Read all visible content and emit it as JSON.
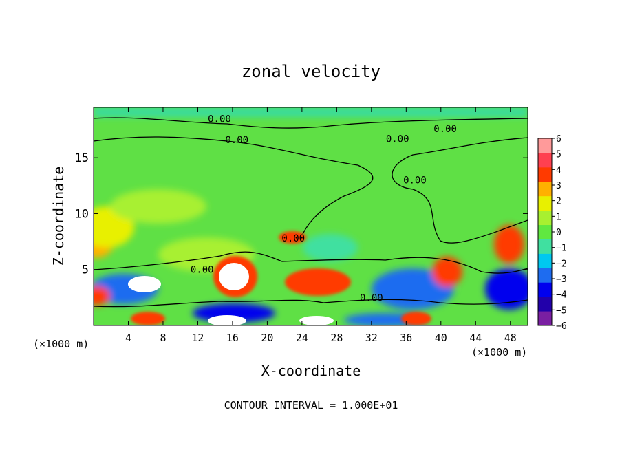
{
  "chart_data": {
    "type": "heatmap",
    "title": "zonal velocity",
    "xlabel": "X-coordinate",
    "ylabel": "Z-coordinate",
    "x_units_left": "(×1000 m)",
    "x_units_right": "(×1000 m)",
    "footer": "CONTOUR INTERVAL = 1.000E+01",
    "xlim": [
      0,
      50
    ],
    "ylim": [
      0,
      19.5
    ],
    "x_ticks": [
      4,
      8,
      12,
      16,
      20,
      24,
      28,
      32,
      36,
      40,
      44,
      48
    ],
    "y_ticks": [
      5,
      10,
      15
    ],
    "colorbar": {
      "range": [
        -6,
        6
      ],
      "ticks": [
        6,
        5,
        4,
        3,
        2,
        1,
        0,
        -1,
        -2,
        -3,
        -4,
        -5,
        -6
      ],
      "labels": [
        "6",
        "5",
        "4",
        "3",
        "2",
        "1",
        "0",
        "−1",
        "−2",
        "−3",
        "−4",
        "−5",
        "−6"
      ],
      "colors": [
        "#7a1fa2",
        "#2200aa",
        "#0000ee",
        "#1e6cf0",
        "#00c8f0",
        "#40e0a0",
        "#60e840",
        "#a8f030",
        "#e8f000",
        "#ffb000",
        "#ff3a00",
        "#ff4050",
        "#ff9a9a"
      ]
    },
    "contour_level": "0.00",
    "contour_label_positions": [
      [
        14.5,
        18.5
      ],
      [
        16.5,
        16.6
      ],
      [
        40.5,
        17.6
      ],
      [
        35,
        16.7
      ],
      [
        37,
        13
      ],
      [
        23,
        7.8
      ],
      [
        12.5,
        5
      ],
      [
        32,
        2.5
      ]
    ],
    "grid": false,
    "legend": "none"
  }
}
